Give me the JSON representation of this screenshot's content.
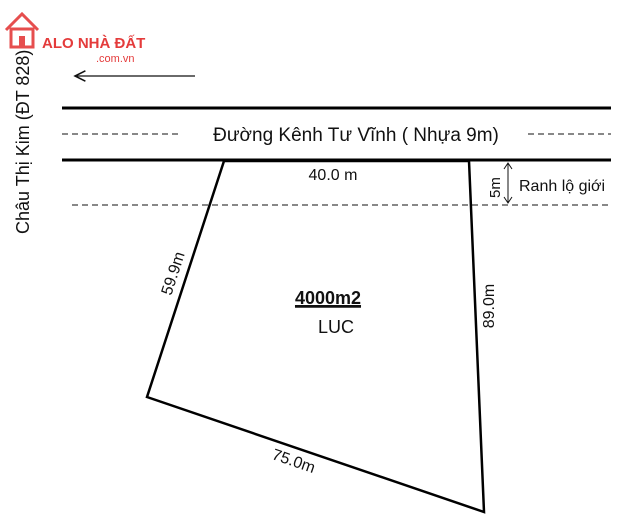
{
  "watermark": {
    "brand": "ALO NHÀ ĐẤT",
    "domain": ".com.vn",
    "color": "#e43b3b"
  },
  "side_road": {
    "label": "Châu Thị Kim (ĐT 828)"
  },
  "main_road": {
    "label": "Đường Kênh Tư Vĩnh ( Nhựa 9m)",
    "direction_arrow": "arrow-left-icon"
  },
  "setback": {
    "distance_label": "5m",
    "label": "Ranh lộ giới"
  },
  "lot": {
    "area": "4000m2",
    "land_type": "LUC",
    "edges": {
      "top": "40.0 m",
      "left": "59.9m",
      "right": "89.0m",
      "bottom": "75.0m"
    },
    "line_color": "#000000"
  }
}
